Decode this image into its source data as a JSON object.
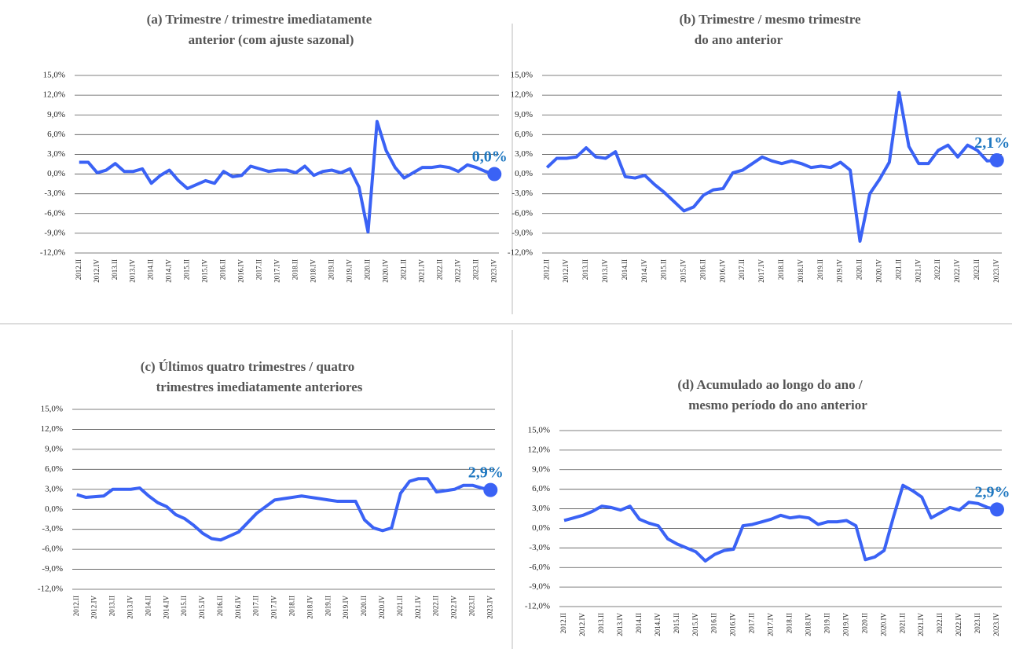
{
  "chart_data": [
    {
      "type": "line",
      "title": [
        "(a) Trimestre / trimestre imediatamente",
        "anterior (com ajuste sazonal)"
      ],
      "categories": [
        "2012.II",
        null,
        "2012.IV",
        null,
        "2013.II",
        null,
        "2013.IV",
        null,
        "2014.II",
        null,
        "2014.IV",
        null,
        "2015.II",
        null,
        "2015.IV",
        null,
        "2016.II",
        null,
        "2016.IV",
        null,
        "2017.II",
        null,
        "2017.IV",
        null,
        "2018.II",
        null,
        "2018.IV",
        null,
        "2019.II",
        null,
        "2019.IV",
        null,
        "2020.II",
        null,
        "2020.IV",
        null,
        "2021.II",
        null,
        "2021.IV",
        null,
        "2022.II",
        null,
        "2022.IV",
        null,
        "2023.II",
        null,
        "2023.IV"
      ],
      "values": [
        1.8,
        1.8,
        0.2,
        0.6,
        1.6,
        0.4,
        0.4,
        0.8,
        -1.4,
        -0.2,
        0.6,
        -1.0,
        -2.2,
        -1.6,
        -1.0,
        -1.4,
        0.4,
        -0.4,
        -0.2,
        1.2,
        0.8,
        0.4,
        0.6,
        0.6,
        0.2,
        1.2,
        -0.2,
        0.4,
        0.6,
        0.2,
        0.8,
        -2.0,
        -8.8,
        8.0,
        3.6,
        1.0,
        -0.6,
        0.2,
        1.0,
        1.0,
        1.2,
        1.0,
        0.4,
        1.4,
        1.0,
        0.4,
        0.0
      ],
      "value_labels": [
        null,
        null,
        null,
        null,
        null,
        null,
        null,
        null,
        null,
        null,
        null,
        null,
        null,
        null,
        null,
        null,
        null,
        null,
        null,
        null,
        null,
        null,
        null,
        null,
        null,
        null,
        null,
        null,
        null,
        null,
        null,
        null,
        null,
        null,
        null,
        null,
        null,
        null,
        null,
        null,
        null,
        null,
        null,
        null,
        null,
        null,
        "0,0%"
      ],
      "color": "#3a62f5",
      "ylim": [
        -12,
        15
      ],
      "yticks": [
        {
          "value": -12,
          "label": "-12,0%"
        },
        {
          "value": -9,
          "label": "-9,0%"
        },
        {
          "value": -6,
          "label": "-6,0%"
        },
        {
          "value": -3,
          "label": "-3,0%"
        },
        {
          "value": 0,
          "label": "0,0%"
        },
        {
          "value": 3,
          "label": "3,0%"
        },
        {
          "value": 6,
          "label": "6,0%"
        },
        {
          "value": 9,
          "label": "9,0%"
        },
        {
          "value": 12,
          "label": "12,0%"
        },
        {
          "value": 15,
          "label": "15,0%"
        }
      ],
      "grid": true
    },
    {
      "type": "line",
      "title": [
        "(b) Trimestre / mesmo trimestre",
        "do ano anterior"
      ],
      "categories": [
        "2012.II",
        null,
        "2012.IV",
        null,
        "2013.II",
        null,
        "2013.IV",
        null,
        "2014.II",
        null,
        "2014.IV",
        null,
        "2015.II",
        null,
        "2015.IV",
        null,
        "2016.II",
        null,
        "2016.IV",
        null,
        "2017.II",
        null,
        "2017.IV",
        null,
        "2018.II",
        null,
        "2018.IV",
        null,
        "2019.II",
        null,
        "2019.IV",
        null,
        "2020.II",
        null,
        "2020.IV",
        null,
        "2021.II",
        null,
        "2021.IV",
        null,
        "2022.II",
        null,
        "2022.IV",
        null,
        "2023.II",
        null,
        "2023.IV"
      ],
      "values": [
        1.0,
        2.4,
        2.4,
        2.6,
        4.0,
        2.6,
        2.4,
        3.4,
        -0.4,
        -0.6,
        -0.2,
        -1.6,
        -2.8,
        -4.2,
        -5.6,
        -5.0,
        -3.2,
        -2.4,
        -2.2,
        0.2,
        0.6,
        1.6,
        2.6,
        2.0,
        1.6,
        2.0,
        1.6,
        1.0,
        1.2,
        1.0,
        1.8,
        0.6,
        -10.2,
        -3.0,
        -0.8,
        1.8,
        12.4,
        4.2,
        1.6,
        1.6,
        3.6,
        4.4,
        2.6,
        4.4,
        3.6,
        2.0,
        2.1
      ],
      "value_labels": [
        null,
        null,
        null,
        null,
        null,
        null,
        null,
        null,
        null,
        null,
        null,
        null,
        null,
        null,
        null,
        null,
        null,
        null,
        null,
        null,
        null,
        null,
        null,
        null,
        null,
        null,
        null,
        null,
        null,
        null,
        null,
        null,
        null,
        null,
        null,
        null,
        null,
        null,
        null,
        null,
        null,
        null,
        null,
        null,
        null,
        null,
        "2,1%"
      ],
      "color": "#3a62f5",
      "ylim": [
        -12,
        15
      ],
      "yticks": [
        {
          "value": -12,
          "label": "-12,0%"
        },
        {
          "value": -9,
          "label": "-9,0%"
        },
        {
          "value": -6,
          "label": "-6,0%"
        },
        {
          "value": -3,
          "label": "-3,0%"
        },
        {
          "value": 0,
          "label": "0,0%"
        },
        {
          "value": 3,
          "label": "3,0%"
        },
        {
          "value": 6,
          "label": "6,0%"
        },
        {
          "value": 9,
          "label": "9,0%"
        },
        {
          "value": 12,
          "label": "12,0%"
        },
        {
          "value": 15,
          "label": "15,0%"
        }
      ],
      "grid": true
    },
    {
      "type": "line",
      "title": [
        "(c) Últimos quatro trimestres / quatro",
        "trimestres imediatamente anteriores"
      ],
      "categories": [
        "2012.II",
        null,
        "2012.IV",
        null,
        "2013.II",
        null,
        "2013.IV",
        null,
        "2014.II",
        null,
        "2014.IV",
        null,
        "2015.II",
        null,
        "2015.IV",
        null,
        "2016.II",
        null,
        "2016.IV",
        null,
        "2017.II",
        null,
        "2017.IV",
        null,
        "2018.II",
        null,
        "2018.IV",
        null,
        "2019.II",
        null,
        "2019.IV",
        null,
        "2020.II",
        null,
        "2020.IV",
        null,
        "2021.II",
        null,
        "2021.IV",
        null,
        "2022.II",
        null,
        "2022.IV",
        null,
        "2023.II",
        null,
        "2023.IV"
      ],
      "values": [
        2.2,
        1.8,
        1.9,
        2.0,
        3.0,
        3.0,
        3.0,
        3.2,
        2.0,
        1.0,
        0.4,
        -0.8,
        -1.4,
        -2.4,
        -3.6,
        -4.4,
        -4.6,
        -4.0,
        -3.4,
        -2.0,
        -0.6,
        0.4,
        1.4,
        1.6,
        1.8,
        2.0,
        1.8,
        1.6,
        1.4,
        1.2,
        1.2,
        1.2,
        -1.6,
        -2.8,
        -3.2,
        -2.8,
        2.4,
        4.2,
        4.6,
        4.6,
        2.6,
        2.8,
        3.0,
        3.6,
        3.6,
        3.2,
        2.9
      ],
      "value_labels": [
        null,
        null,
        null,
        null,
        null,
        null,
        null,
        null,
        null,
        null,
        null,
        null,
        null,
        null,
        null,
        null,
        null,
        null,
        null,
        null,
        null,
        null,
        null,
        null,
        null,
        null,
        null,
        null,
        null,
        null,
        null,
        null,
        null,
        null,
        null,
        null,
        null,
        null,
        null,
        null,
        null,
        null,
        null,
        null,
        null,
        null,
        "2,9%"
      ],
      "color": "#3a62f5",
      "ylim": [
        -12,
        15
      ],
      "yticks": [
        {
          "value": -12,
          "label": "-12,0%"
        },
        {
          "value": -9,
          "label": "-9,0%"
        },
        {
          "value": -6,
          "label": "-6,0%"
        },
        {
          "value": -3,
          "label": "-3,0%"
        },
        {
          "value": 0,
          "label": "0,0%"
        },
        {
          "value": 3,
          "label": "3,0%"
        },
        {
          "value": 6,
          "label": "6,0%"
        },
        {
          "value": 9,
          "label": "9,0%"
        },
        {
          "value": 12,
          "label": "12,0%"
        },
        {
          "value": 15,
          "label": "15,0%"
        }
      ],
      "grid": true
    },
    {
      "type": "line",
      "title": [
        "(d) Acumulado ao longo do ano /",
        "mesmo período do ano anterior"
      ],
      "categories": [
        "2012.II",
        null,
        "2012.IV",
        null,
        "2013.II",
        null,
        "2013.IV",
        null,
        "2014.II",
        null,
        "2014.IV",
        null,
        "2015.II",
        null,
        "2015.IV",
        null,
        "2016.II",
        null,
        "2016.IV",
        null,
        "2017.II",
        null,
        "2017.IV",
        null,
        "2018.II",
        null,
        "2018.IV",
        null,
        "2019.II",
        null,
        "2019.IV",
        null,
        "2020.II",
        null,
        "2020.IV",
        null,
        "2021.II",
        null,
        "2021.IV",
        null,
        "2022.II",
        null,
        "2022.IV",
        null,
        "2023.II",
        null,
        "2023.IV"
      ],
      "values": [
        1.2,
        1.6,
        2.0,
        2.6,
        3.4,
        3.2,
        2.8,
        3.4,
        1.4,
        0.8,
        0.4,
        -1.6,
        -2.4,
        -3.0,
        -3.6,
        -5.0,
        -4.0,
        -3.4,
        -3.2,
        0.4,
        0.6,
        1.0,
        1.4,
        2.0,
        1.6,
        1.8,
        1.6,
        0.6,
        1.0,
        1.0,
        1.2,
        0.4,
        -4.8,
        -4.4,
        -3.4,
        1.8,
        6.6,
        5.8,
        4.8,
        1.6,
        2.4,
        3.2,
        2.8,
        4.0,
        3.8,
        3.2,
        2.9
      ],
      "value_labels": [
        null,
        null,
        null,
        null,
        null,
        null,
        null,
        null,
        null,
        null,
        null,
        null,
        null,
        null,
        null,
        null,
        null,
        null,
        null,
        null,
        null,
        null,
        null,
        null,
        null,
        null,
        null,
        null,
        null,
        null,
        null,
        null,
        null,
        null,
        null,
        null,
        null,
        null,
        null,
        null,
        null,
        null,
        null,
        null,
        null,
        null,
        "2,9%"
      ],
      "color": "#3a62f5",
      "ylim": [
        -12,
        15
      ],
      "yticks": [
        {
          "value": -12,
          "label": "-12,0%"
        },
        {
          "value": -9,
          "label": "-9,0%"
        },
        {
          "value": -6,
          "label": "-6,0%"
        },
        {
          "value": -3,
          "label": "-3,0%"
        },
        {
          "value": 0,
          "label": "0,0%"
        },
        {
          "value": 3,
          "label": "3,0%"
        },
        {
          "value": 6,
          "label": "6,0%"
        },
        {
          "value": 9,
          "label": "9,0%"
        },
        {
          "value": 12,
          "label": "12,0%"
        },
        {
          "value": 15,
          "label": "15,0%"
        }
      ],
      "grid": true
    }
  ]
}
